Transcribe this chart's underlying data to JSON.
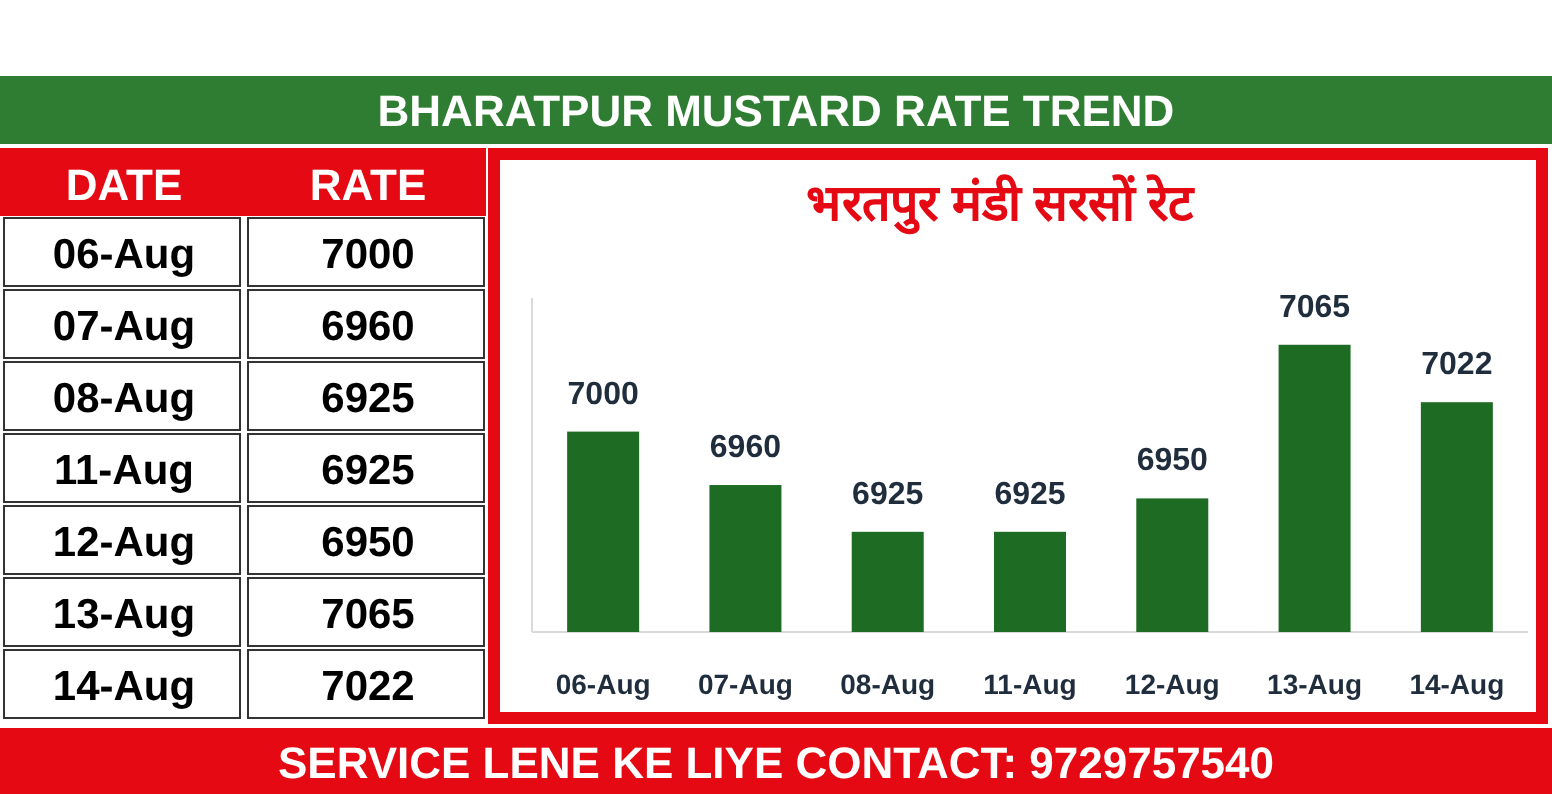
{
  "chart_data": {
    "type": "bar",
    "title": "BHARATPUR MUSTARD RATE TREND",
    "subtitle": "भरतपुर मंडी सरसों रेट",
    "categories": [
      "06-Aug",
      "07-Aug",
      "08-Aug",
      "11-Aug",
      "12-Aug",
      "13-Aug",
      "14-Aug"
    ],
    "values": [
      7000,
      6960,
      6925,
      6925,
      6950,
      7065,
      7022
    ],
    "color": "#1e6b24",
    "ylim": [
      6850,
      7100
    ],
    "data_labels": true,
    "annotations": [
      "DATE",
      "RATE",
      "SERVICE LENE KE LIYE CONTACT: 9729757540",
      "7000",
      "6960",
      "6925",
      "6925",
      "6950",
      "7065",
      "7022"
    ]
  }
}
